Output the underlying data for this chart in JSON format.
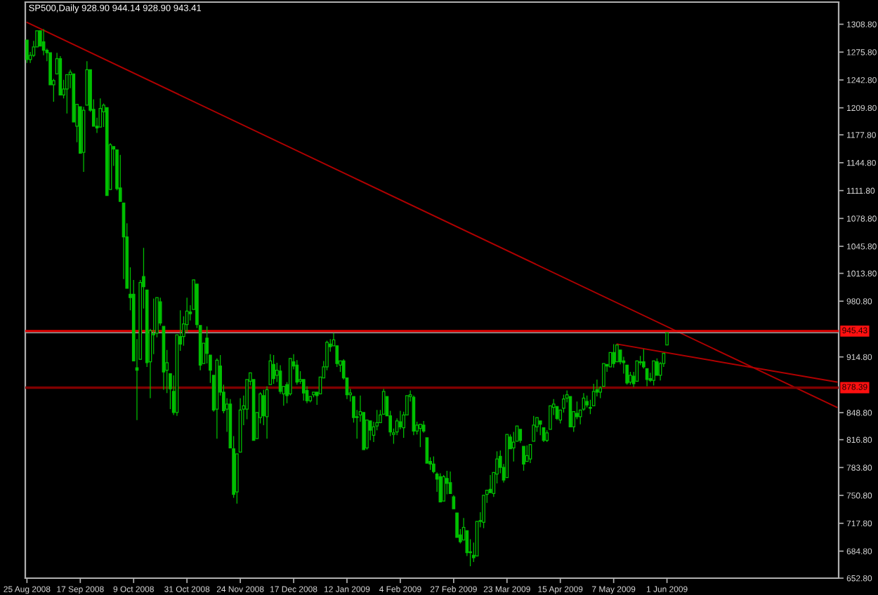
{
  "chart_data": {
    "type": "candlestick",
    "title": "SP500,Daily 928.90 944.14 928.90 943.41",
    "color": "#00c000",
    "categories": [
      "25 Aug 2008",
      null,
      null,
      null,
      null,
      null,
      null,
      null,
      null,
      null,
      null,
      null,
      null,
      null,
      null,
      null,
      "17 Sep 2008",
      null,
      null,
      null,
      null,
      null,
      null,
      null,
      null,
      null,
      null,
      null,
      null,
      null,
      null,
      null,
      "9 Oct 2008",
      null,
      null,
      null,
      null,
      null,
      null,
      null,
      null,
      null,
      null,
      null,
      null,
      null,
      null,
      null,
      "31 Oct 2008",
      null,
      null,
      null,
      null,
      null,
      null,
      null,
      null,
      null,
      null,
      null,
      null,
      null,
      null,
      null,
      "24 Nov 2008",
      null,
      null,
      null,
      null,
      null,
      null,
      null,
      null,
      null,
      null,
      null,
      null,
      null,
      null,
      null,
      "17 Dec 2008",
      null,
      null,
      null,
      null,
      null,
      null,
      null,
      null,
      null,
      null,
      null,
      null,
      null,
      null,
      null,
      "12 Jan 2009",
      null,
      null,
      null,
      null,
      null,
      null,
      null,
      null,
      null,
      null,
      null,
      null,
      null,
      null,
      null,
      "4 Feb 2009",
      null,
      null,
      null,
      null,
      null,
      null,
      null,
      null,
      null,
      null,
      null,
      null,
      null,
      null,
      null,
      "27 Feb 2009",
      null,
      null,
      null,
      null,
      null,
      null,
      null,
      null,
      null,
      null,
      null,
      null,
      null,
      null,
      null,
      "23 Mar 2009",
      null,
      null,
      null,
      null,
      null,
      null,
      null,
      null,
      null,
      null,
      null,
      null,
      null,
      null,
      null,
      "15 Apr 2009",
      null,
      null,
      null,
      null,
      null,
      null,
      null,
      null,
      null,
      null,
      null,
      null,
      null,
      null,
      null,
      "7 May 2009",
      null,
      null,
      null,
      null,
      null,
      null,
      null,
      null,
      null,
      null,
      null,
      null,
      null,
      null,
      null,
      "1 Jun 2009",
      null,
      null,
      null,
      null,
      null,
      null,
      null,
      null,
      null,
      null,
      null,
      null,
      null,
      null,
      null,
      null,
      null,
      null,
      null,
      null,
      null,
      null,
      null,
      null,
      null,
      null,
      null,
      null,
      null,
      null,
      null,
      null,
      null,
      null,
      null,
      null,
      null,
      null,
      null,
      null,
      null,
      null,
      null,
      null,
      null,
      null,
      null,
      null,
      null,
      null,
      null
    ],
    "ohlc": [
      [
        1290,
        1290,
        1263,
        1267
      ],
      [
        1267,
        1276,
        1263,
        1272
      ],
      [
        1272,
        1289,
        1270,
        1282
      ],
      [
        1282,
        1301,
        1282,
        1301
      ],
      [
        1301,
        1301,
        1282,
        1283
      ],
      [
        1288,
        1303,
        1272,
        1278
      ],
      [
        1278,
        1280,
        1265,
        1275
      ],
      [
        1275,
        1275,
        1236,
        1237
      ],
      [
        1237,
        1244,
        1217,
        1242
      ],
      [
        1250,
        1275,
        1250,
        1268
      ],
      [
        1268,
        1271,
        1224,
        1225
      ],
      [
        1225,
        1243,
        1221,
        1232
      ],
      [
        1232,
        1249,
        1203,
        1249
      ],
      [
        1249,
        1255,
        1233,
        1252
      ],
      [
        1250,
        1250,
        1192,
        1193
      ],
      [
        1188,
        1214,
        1169,
        1214
      ],
      [
        1211,
        1211,
        1156,
        1156
      ],
      [
        1157,
        1211,
        1134,
        1207
      ],
      [
        1213,
        1265,
        1213,
        1255
      ],
      [
        1255,
        1255,
        1205,
        1207
      ],
      [
        1208,
        1220,
        1187,
        1188
      ],
      [
        1188,
        1198,
        1180,
        1186
      ],
      [
        1187,
        1221,
        1187,
        1209
      ],
      [
        1205,
        1215,
        1187,
        1213
      ],
      [
        1210,
        1210,
        1106,
        1106
      ],
      [
        1113,
        1168,
        1113,
        1166
      ],
      [
        1164,
        1165,
        1141,
        1161
      ],
      [
        1160,
        1160,
        1112,
        1114
      ],
      [
        1115,
        1154,
        1098,
        1099
      ],
      [
        1097,
        1097,
        1007,
        1057
      ],
      [
        1057,
        1073,
        996,
        996
      ],
      [
        989,
        1021,
        970,
        985
      ],
      [
        989,
        1006,
        909,
        910
      ],
      [
        902,
        936,
        840,
        899
      ],
      [
        912,
        1006,
        912,
        1003
      ],
      [
        1010,
        1044,
        972,
        998
      ],
      [
        994,
        995,
        903,
        908
      ],
      [
        909,
        948,
        866,
        946
      ],
      [
        942,
        984,
        918,
        941
      ],
      [
        943,
        985,
        938,
        985
      ],
      [
        980,
        985,
        952,
        955
      ],
      [
        951,
        951,
        876,
        897
      ],
      [
        899,
        923,
        872,
        908
      ],
      [
        895,
        896,
        853,
        877
      ],
      [
        874,
        893,
        846,
        849
      ],
      [
        849,
        941,
        845,
        941
      ],
      [
        939,
        970,
        922,
        930
      ],
      [
        939,
        963,
        928,
        954
      ],
      [
        953,
        985,
        944,
        969
      ],
      [
        968,
        976,
        958,
        966
      ],
      [
        971,
        1007,
        971,
        1006
      ],
      [
        1001,
        1001,
        949,
        953
      ],
      [
        952,
        952,
        899,
        905
      ],
      [
        907,
        931,
        907,
        931
      ],
      [
        937,
        951,
        907,
        919
      ],
      [
        917,
        917,
        884,
        899
      ],
      [
        893,
        893,
        850,
        852
      ],
      [
        853,
        913,
        818,
        911
      ],
      [
        904,
        917,
        869,
        873
      ],
      [
        873,
        882,
        848,
        851
      ],
      [
        853,
        866,
        826,
        859
      ],
      [
        859,
        865,
        806,
        807
      ],
      [
        806,
        821,
        748,
        752
      ],
      [
        755,
        801,
        741,
        800
      ],
      [
        802,
        866,
        802,
        852
      ],
      [
        853,
        869,
        834,
        857
      ],
      [
        853,
        888,
        841,
        888
      ],
      [
        886,
        896,
        881,
        896
      ],
      [
        888,
        888,
        815,
        816
      ],
      [
        818,
        850,
        818,
        849
      ],
      [
        843,
        873,
        836,
        871
      ],
      [
        869,
        876,
        834,
        845
      ],
      [
        844,
        880,
        818,
        876
      ],
      [
        882,
        918,
        882,
        910
      ],
      [
        906,
        917,
        883,
        889
      ],
      [
        893,
        908,
        885,
        899
      ],
      [
        898,
        905,
        871,
        874
      ],
      [
        871,
        881,
        857,
        880
      ],
      [
        882,
        885,
        860,
        869
      ],
      [
        871,
        914,
        869,
        913
      ],
      [
        909,
        918,
        900,
        904
      ],
      [
        905,
        911,
        882,
        885
      ],
      [
        886,
        898,
        883,
        888
      ],
      [
        888,
        889,
        863,
        872
      ],
      [
        875,
        880,
        860,
        863
      ],
      [
        863,
        869,
        861,
        868
      ],
      [
        870,
        873,
        867,
        873
      ],
      [
        873,
        874,
        858,
        869
      ],
      [
        871,
        891,
        871,
        891
      ],
      [
        890,
        910,
        890,
        903
      ],
      [
        903,
        934,
        899,
        932
      ],
      [
        930,
        936,
        921,
        927
      ],
      [
        928,
        943,
        927,
        935
      ],
      [
        928,
        928,
        903,
        907
      ],
      [
        905,
        910,
        897,
        910
      ],
      [
        910,
        912,
        888,
        890
      ],
      [
        890,
        890,
        865,
        870
      ],
      [
        870,
        877,
        862,
        872
      ],
      [
        868,
        868,
        837,
        843
      ],
      [
        843,
        852,
        818,
        844
      ],
      [
        846,
        869,
        838,
        850
      ],
      [
        849,
        849,
        804,
        805
      ],
      [
        807,
        841,
        805,
        840
      ],
      [
        839,
        839,
        816,
        828
      ],
      [
        822,
        838,
        814,
        832
      ],
      [
        833,
        852,
        828,
        837
      ],
      [
        837,
        852,
        836,
        846
      ],
      [
        847,
        877,
        847,
        874
      ],
      [
        868,
        868,
        844,
        845
      ],
      [
        845,
        851,
        821,
        826
      ],
      [
        823,
        830,
        812,
        825
      ],
      [
        826,
        842,
        822,
        839
      ],
      [
        838,
        851,
        829,
        832
      ],
      [
        831,
        850,
        819,
        846
      ],
      [
        846,
        870,
        846,
        869
      ],
      [
        868,
        875,
        862,
        870
      ],
      [
        867,
        869,
        822,
        827
      ],
      [
        827,
        838,
        823,
        834
      ],
      [
        830,
        835,
        808,
        835
      ],
      [
        834,
        839,
        825,
        827
      ],
      [
        819,
        819,
        789,
        789
      ],
      [
        791,
        796,
        781,
        788
      ],
      [
        788,
        797,
        777,
        779
      ],
      [
        776,
        778,
        755,
        770
      ],
      [
        773,
        777,
        743,
        743
      ],
      [
        744,
        775,
        744,
        773
      ],
      [
        771,
        780,
        752,
        765
      ],
      [
        766,
        779,
        752,
        753
      ],
      [
        749,
        751,
        734,
        735
      ],
      [
        730,
        730,
        700,
        701
      ],
      [
        704,
        711,
        694,
        696
      ],
      [
        698,
        724,
        698,
        713
      ],
      [
        709,
        709,
        679,
        683
      ],
      [
        684,
        699,
        667,
        683
      ],
      [
        680,
        695,
        672,
        677
      ],
      [
        679,
        720,
        679,
        720
      ],
      [
        720,
        731,
        713,
        721
      ],
      [
        719,
        751,
        712,
        751
      ],
      [
        752,
        758,
        742,
        757
      ],
      [
        758,
        775,
        753,
        754
      ],
      [
        753,
        778,
        749,
        778
      ],
      [
        776,
        803,
        765,
        794
      ],
      [
        797,
        804,
        777,
        784
      ],
      [
        784,
        788,
        766,
        769
      ],
      [
        772,
        823,
        772,
        823
      ],
      [
        820,
        823,
        805,
        806
      ],
      [
        807,
        826,
        791,
        814
      ],
      [
        815,
        833,
        815,
        833
      ],
      [
        829,
        829,
        813,
        816
      ],
      [
        809,
        810,
        780,
        788
      ],
      [
        791,
        810,
        791,
        798
      ],
      [
        794,
        812,
        789,
        811
      ],
      [
        815,
        845,
        815,
        834
      ],
      [
        832,
        843,
        826,
        843
      ],
      [
        839,
        839,
        822,
        835
      ],
      [
        831,
        831,
        814,
        816
      ],
      [
        816,
        828,
        814,
        825
      ],
      [
        829,
        857,
        829,
        857
      ],
      [
        855,
        865,
        846,
        859
      ],
      [
        856,
        857,
        840,
        842
      ],
      [
        840,
        853,
        836,
        852
      ],
      [
        854,
        870,
        849,
        865
      ],
      [
        866,
        875,
        861,
        870
      ],
      [
        868,
        868,
        832,
        832
      ],
      [
        832,
        851,
        826,
        850
      ],
      [
        848,
        862,
        841,
        844
      ],
      [
        844,
        852,
        835,
        852
      ],
      [
        853,
        872,
        851,
        866
      ],
      [
        862,
        869,
        855,
        858
      ],
      [
        854,
        864,
        847,
        855
      ],
      [
        857,
        883,
        857,
        874
      ],
      [
        876,
        888,
        868,
        873
      ],
      [
        873,
        880,
        866,
        878
      ],
      [
        880,
        907,
        880,
        907
      ],
      [
        906,
        907,
        897,
        904
      ],
      [
        903,
        920,
        903,
        920
      ],
      [
        920,
        930,
        902,
        907
      ],
      [
        909,
        930,
        909,
        929
      ],
      [
        923,
        923,
        906,
        909
      ],
      [
        910,
        915,
        895,
        908
      ],
      [
        905,
        905,
        882,
        884
      ],
      [
        885,
        897,
        882,
        893
      ],
      [
        892,
        897,
        879,
        883
      ],
      [
        886,
        910,
        886,
        910
      ],
      [
        909,
        916,
        905,
        908
      ],
      [
        909,
        924,
        901,
        903
      ],
      [
        901,
        902,
        880,
        888
      ],
      [
        889,
        896,
        885,
        887
      ],
      [
        887,
        911,
        881,
        910
      ],
      [
        909,
        913,
        893,
        893
      ],
      [
        893,
        909,
        887,
        907
      ],
      [
        907,
        920,
        903,
        919
      ],
      [
        928.9,
        944.14,
        928.9,
        943.41
      ],
      null,
      null,
      null,
      null,
      null,
      null,
      null,
      null,
      null,
      null,
      null,
      null,
      null,
      null,
      null,
      null,
      null,
      null,
      null,
      null,
      null,
      null,
      null,
      null,
      null,
      null,
      null,
      null,
      null,
      null,
      null,
      null,
      null,
      null,
      null,
      null,
      null,
      null,
      null,
      null,
      null,
      null,
      null,
      null,
      null,
      null,
      null,
      null,
      null,
      null,
      null
    ],
    "series": [
      {
        "type": "line",
        "color": "#b00000",
        "values": [
          1311,
          null,
          null,
          null,
          null,
          null,
          null,
          null,
          null,
          null,
          null,
          null,
          null,
          null,
          null,
          null,
          null,
          null,
          null,
          null,
          null,
          null,
          null,
          null,
          null,
          null,
          null,
          null,
          null,
          null,
          null,
          null,
          null,
          null,
          null,
          null,
          null,
          null,
          null,
          null,
          null,
          null,
          null,
          null,
          null,
          null,
          null,
          null,
          null,
          null,
          null,
          null,
          null,
          null,
          null,
          null,
          null,
          null,
          null,
          null,
          null,
          null,
          null,
          null,
          null,
          null,
          null,
          null,
          null,
          null,
          null,
          null,
          null,
          null,
          null,
          null,
          null,
          null,
          null,
          null,
          null,
          null,
          null,
          null,
          null,
          null,
          null,
          null,
          null,
          null,
          null,
          null,
          null,
          null,
          null,
          null,
          null,
          null,
          null,
          null,
          null,
          null,
          null,
          null,
          null,
          null,
          null,
          null,
          null,
          null,
          null,
          null,
          null,
          null,
          null,
          null,
          null,
          null,
          null,
          null,
          null,
          null,
          null,
          null,
          null,
          null,
          null,
          null,
          null,
          null,
          null,
          null,
          null,
          null,
          null,
          null,
          null,
          null,
          null,
          null,
          null,
          null,
          null,
          null,
          null,
          null,
          null,
          null,
          null,
          null,
          null,
          null,
          null,
          null,
          null,
          null,
          null,
          null,
          null,
          null,
          null,
          null,
          null,
          null,
          null,
          null,
          null,
          null,
          null,
          null,
          null,
          null,
          null,
          null,
          null,
          null,
          null,
          null,
          null,
          null,
          null,
          null,
          null,
          null,
          null,
          null,
          null,
          null,
          null,
          null,
          null,
          null,
          null,
          null,
          null,
          null,
          null,
          null,
          null,
          null,
          null,
          null,
          null,
          null,
          null,
          null,
          null,
          null,
          null,
          null,
          null,
          null,
          null,
          null,
          null,
          null,
          null,
          null,
          null,
          null,
          null,
          null,
          null,
          null,
          null,
          null,
          null,
          null,
          null,
          null,
          null,
          null,
          null,
          null,
          null,
          null,
          null,
          null,
          null,
          null,
          null,
          null,
          null,
          855
        ]
      },
      {
        "type": "line",
        "color": "#b00000",
        "values": [
          null,
          null,
          null,
          null,
          null,
          null,
          null,
          null,
          null,
          null,
          null,
          null,
          null,
          null,
          null,
          null,
          null,
          null,
          null,
          null,
          null,
          null,
          null,
          null,
          null,
          null,
          null,
          null,
          null,
          null,
          null,
          null,
          null,
          null,
          null,
          null,
          null,
          null,
          null,
          null,
          null,
          null,
          null,
          null,
          null,
          null,
          null,
          null,
          null,
          null,
          null,
          null,
          null,
          null,
          null,
          null,
          null,
          null,
          null,
          null,
          null,
          null,
          null,
          null,
          null,
          null,
          null,
          null,
          null,
          null,
          null,
          null,
          null,
          null,
          null,
          null,
          null,
          null,
          null,
          null,
          null,
          null,
          null,
          null,
          null,
          null,
          null,
          null,
          null,
          null,
          null,
          null,
          null,
          null,
          null,
          null,
          null,
          null,
          null,
          null,
          null,
          null,
          null,
          null,
          null,
          null,
          null,
          null,
          null,
          null,
          null,
          null,
          null,
          null,
          null,
          null,
          null,
          null,
          null,
          null,
          null,
          null,
          null,
          null,
          null,
          null,
          null,
          null,
          null,
          null,
          null,
          null,
          null,
          null,
          null,
          null,
          null,
          null,
          null,
          null,
          null,
          null,
          null,
          null,
          null,
          null,
          null,
          null,
          null,
          null,
          null,
          null,
          null,
          null,
          null,
          null,
          null,
          null,
          null,
          null,
          null,
          null,
          null,
          null,
          null,
          null,
          null,
          null,
          null,
          null,
          null,
          null,
          null,
          null,
          null,
          null,
          null,
          930,
          null,
          null,
          null,
          null,
          null,
          null,
          null,
          null,
          null,
          null,
          null,
          null,
          null,
          null,
          null,
          null,
          null,
          null,
          null,
          null,
          null,
          null,
          null,
          null,
          null,
          null,
          null,
          null,
          null,
          null,
          null,
          null,
          null,
          null,
          null,
          null,
          null,
          null,
          null,
          null,
          null,
          null,
          null,
          null,
          null,
          null,
          null,
          null,
          null,
          null,
          null,
          null,
          null,
          null,
          null,
          null,
          null,
          null,
          null,
          null,
          null,
          null,
          null,
          null,
          null,
          885
        ]
      }
    ],
    "ref_lines": [
      {
        "axis": "y",
        "value": 945.43,
        "label": "945.43",
        "color": "#e00000"
      },
      {
        "axis": "y",
        "value": 943.41,
        "label": null,
        "color": "#a0a0a0"
      },
      {
        "axis": "y",
        "value": 878.39,
        "label": "878.39",
        "color": "#800000"
      }
    ],
    "ylim": [
      652.8,
      1335
    ],
    "yticks": [
      {
        "value": 1308.8,
        "label": "1308.80"
      },
      {
        "value": 1275.8,
        "label": "1275.80"
      },
      {
        "value": 1242.8,
        "label": "1242.80"
      },
      {
        "value": 1209.8,
        "label": "1209.80"
      },
      {
        "value": 1177.8,
        "label": "1177.80"
      },
      {
        "value": 1144.8,
        "label": "1144.80"
      },
      {
        "value": 1111.8,
        "label": "1111.80"
      },
      {
        "value": 1078.8,
        "label": "1078.80"
      },
      {
        "value": 1045.8,
        "label": "1045.80"
      },
      {
        "value": 1013.8,
        "label": "1013.80"
      },
      {
        "value": 980.8,
        "label": "980.80"
      },
      {
        "value": 914.8,
        "label": "914.80"
      },
      {
        "value": 848.8,
        "label": "848.80"
      },
      {
        "value": 816.8,
        "label": "816.80"
      },
      {
        "value": 783.8,
        "label": "783.80"
      },
      {
        "value": 750.8,
        "label": "750.80"
      },
      {
        "value": 717.8,
        "label": "717.80"
      },
      {
        "value": 684.8,
        "label": "684.80"
      },
      {
        "value": 652.8,
        "label": "652.80"
      }
    ]
  }
}
